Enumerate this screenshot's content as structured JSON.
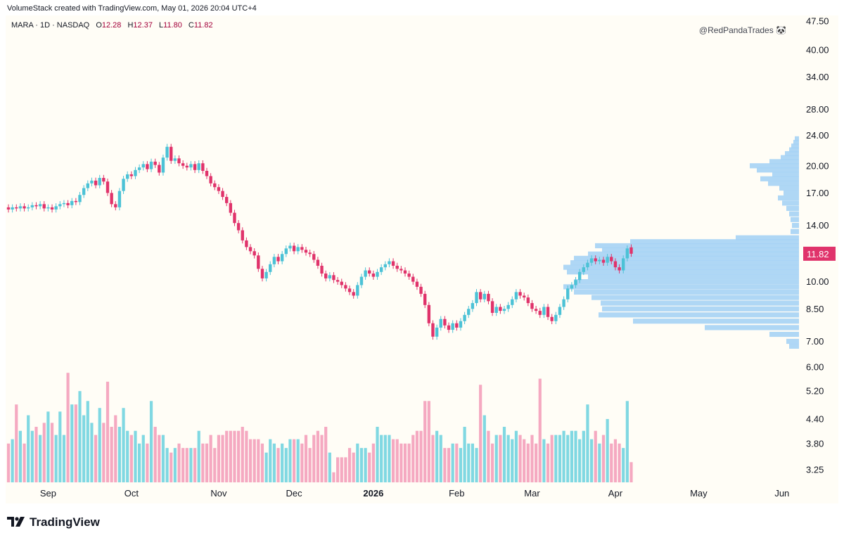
{
  "header": {
    "attribution": "VolumeStack created with TradingView.com, May 01, 2026 20:04 UTC+4"
  },
  "legend": {
    "symbol_line": "MARA · 1D · NASDAQ",
    "open_label": "O",
    "open": "12.28",
    "high_label": "H",
    "high": "12.37",
    "low_label": "L",
    "low": "11.80",
    "close_label": "C",
    "close": "11.82"
  },
  "watermark": "@RedPandaTrades 🐼",
  "footer": {
    "logo_text": "TradingView"
  },
  "colors": {
    "up": "#4cc2d6",
    "down": "#e0336b",
    "vol_up": "#80d8e2",
    "vol_down": "#f5a9c1",
    "profile": "#a6d3f5",
    "background": "#fffdf6"
  },
  "chart_data": {
    "type": "candlestick",
    "symbol": "MARA",
    "interval": "1D",
    "exchange": "NASDAQ",
    "price_scale": "log",
    "price_ticks": [
      47.5,
      40.0,
      34.0,
      28.0,
      24.0,
      20.0,
      17.0,
      14.0,
      11.82,
      10.0,
      8.5,
      7.0,
      6.0,
      5.2,
      4.4,
      3.8,
      3.25
    ],
    "price_tick_labels": [
      "47.50",
      "40.00",
      "34.00",
      "28.00",
      "24.00",
      "20.00",
      "17.00",
      "14.00",
      "10.00",
      "8.50",
      "7.00",
      "6.00",
      "5.20",
      "4.40",
      "3.80",
      "3.25"
    ],
    "last_price": "11.82",
    "time_labels": [
      {
        "label": "Sep",
        "day": 10
      },
      {
        "label": "Oct",
        "day": 31
      },
      {
        "label": "Nov",
        "day": 53
      },
      {
        "label": "Dec",
        "day": 72
      },
      {
        "label": "2026",
        "day": 92,
        "bold": true
      },
      {
        "label": "Feb",
        "day": 113
      },
      {
        "label": "Mar",
        "day": 132
      },
      {
        "label": "Apr",
        "day": 153
      },
      {
        "label": "May",
        "day": 174
      },
      {
        "label": "Jun",
        "day": 195
      }
    ],
    "closes": [
      15.4,
      15.6,
      15.5,
      15.7,
      15.5,
      15.6,
      15.8,
      15.7,
      15.9,
      15.5,
      15.6,
      15.4,
      15.7,
      15.9,
      16.0,
      15.8,
      16.2,
      16.1,
      16.8,
      17.5,
      18.0,
      18.3,
      17.8,
      18.6,
      18.2,
      17.0,
      15.9,
      15.6,
      17.2,
      18.5,
      19.0,
      18.8,
      19.5,
      19.8,
      20.2,
      19.6,
      20.5,
      20.1,
      19.2,
      21.0,
      22.4,
      20.6,
      20.9,
      20.3,
      20.0,
      19.8,
      20.2,
      19.5,
      20.3,
      19.4,
      18.8,
      18.0,
      17.6,
      17.2,
      16.6,
      16.0,
      15.1,
      14.2,
      13.6,
      12.8,
      12.3,
      12.0,
      11.7,
      10.8,
      10.2,
      10.6,
      11.1,
      11.6,
      11.3,
      11.8,
      12.2,
      12.4,
      12.0,
      12.3,
      12.1,
      11.9,
      11.8,
      11.4,
      11.0,
      10.5,
      10.2,
      10.4,
      10.1,
      10.0,
      9.8,
      9.6,
      9.4,
      9.2,
      9.8,
      10.3,
      10.7,
      10.5,
      10.3,
      10.6,
      10.9,
      11.1,
      11.3,
      11.0,
      10.8,
      10.7,
      10.5,
      10.3,
      10.0,
      9.7,
      9.3,
      8.7,
      7.8,
      7.2,
      7.6,
      8.0,
      7.7,
      7.5,
      7.8,
      7.6,
      7.9,
      8.2,
      8.5,
      8.8,
      9.4,
      9.0,
      9.3,
      8.9,
      8.3,
      8.6,
      8.4,
      8.5,
      8.7,
      9.0,
      9.4,
      9.2,
      9.1,
      8.8,
      8.5,
      8.4,
      8.2,
      8.6,
      8.1,
      7.9,
      8.2,
      8.6,
      9.0,
      9.6,
      9.8,
      10.1,
      10.6,
      10.9,
      11.2,
      11.5,
      11.3,
      11.4,
      11.2,
      11.6,
      11.3,
      10.9,
      10.7,
      11.5,
      12.2,
      11.82
    ],
    "opens": [
      15.6,
      15.4,
      15.6,
      15.5,
      15.7,
      15.5,
      15.6,
      15.8,
      15.7,
      15.9,
      15.5,
      15.6,
      15.4,
      15.7,
      15.9,
      16.0,
      15.8,
      16.2,
      16.1,
      16.8,
      17.5,
      18.0,
      18.3,
      17.8,
      18.6,
      18.2,
      17.0,
      15.9,
      15.6,
      17.2,
      18.5,
      19.0,
      18.8,
      19.5,
      19.8,
      20.2,
      19.6,
      20.5,
      20.1,
      19.2,
      21.0,
      22.4,
      20.6,
      20.9,
      20.3,
      20.0,
      19.8,
      20.2,
      19.5,
      20.3,
      19.4,
      18.8,
      18.0,
      17.6,
      17.2,
      16.6,
      16.0,
      15.1,
      14.2,
      13.6,
      12.8,
      12.3,
      12.0,
      11.7,
      10.8,
      10.2,
      10.6,
      11.1,
      11.6,
      11.3,
      11.8,
      12.2,
      12.4,
      12.0,
      12.3,
      12.1,
      11.9,
      11.8,
      11.4,
      11.0,
      10.5,
      10.2,
      10.4,
      10.1,
      10.0,
      9.8,
      9.6,
      9.4,
      9.2,
      9.8,
      10.3,
      10.7,
      10.5,
      10.3,
      10.6,
      10.9,
      11.1,
      11.3,
      11.0,
      10.8,
      10.7,
      10.5,
      10.3,
      10.0,
      9.7,
      9.3,
      8.7,
      7.8,
      7.2,
      7.6,
      8.0,
      7.7,
      7.5,
      7.8,
      7.6,
      7.9,
      8.2,
      8.5,
      8.8,
      9.4,
      9.0,
      9.3,
      8.9,
      8.3,
      8.6,
      8.4,
      8.5,
      8.7,
      9.0,
      9.4,
      9.2,
      9.1,
      8.8,
      8.5,
      8.4,
      8.2,
      8.6,
      8.1,
      7.9,
      8.2,
      8.6,
      9.0,
      9.6,
      9.8,
      10.1,
      10.6,
      10.9,
      11.2,
      11.5,
      11.3,
      11.4,
      11.2,
      11.6,
      11.3,
      10.9,
      10.7,
      11.5,
      12.28
    ],
    "volumes": [
      3.8,
      3.9,
      4.8,
      4.1,
      3.8,
      4.5,
      4.1,
      4.2,
      4.0,
      4.3,
      4.6,
      4.3,
      4.0,
      4.6,
      4.0,
      5.8,
      4.8,
      4.8,
      5.2,
      4.5,
      4.9,
      4.3,
      4.0,
      4.7,
      4.3,
      5.5,
      4.2,
      4.5,
      4.2,
      4.7,
      4.1,
      4.0,
      4.1,
      3.8,
      4.0,
      3.8,
      4.9,
      4.2,
      4.0,
      4.0,
      3.7,
      3.6,
      3.7,
      3.8,
      3.7,
      3.7,
      3.7,
      3.7,
      4.1,
      3.8,
      3.8,
      4.0,
      3.7,
      4.0,
      4.0,
      4.1,
      4.1,
      4.1,
      4.1,
      4.2,
      4.1,
      3.9,
      3.9,
      3.9,
      3.8,
      3.6,
      3.9,
      3.8,
      3.7,
      3.8,
      3.7,
      3.9,
      3.9,
      3.9,
      3.8,
      4.0,
      3.7,
      4.0,
      4.1,
      4.0,
      4.2,
      3.6,
      3.2,
      3.5,
      3.5,
      3.5,
      3.7,
      3.6,
      3.8,
      3.7,
      3.7,
      3.6,
      3.8,
      4.2,
      4.0,
      4.0,
      4.0,
      3.9,
      3.9,
      3.8,
      3.8,
      3.8,
      4.0,
      4.1,
      4.1,
      4.9,
      4.9,
      4.0,
      4.1,
      4.0,
      3.7,
      3.7,
      3.8,
      3.8,
      3.7,
      4.2,
      3.8,
      3.8,
      3.7,
      5.4,
      4.5,
      4.1,
      3.8,
      4.0,
      4.0,
      4.2,
      4.0,
      3.9,
      4.1,
      4.0,
      3.9,
      3.8,
      4.0,
      3.8,
      5.6,
      3.9,
      3.8,
      4.0,
      4.0,
      4.0,
      4.1,
      4.0,
      4.1,
      4.1,
      3.9,
      4.1,
      4.8,
      3.9,
      4.1,
      3.8,
      4.0,
      4.4,
      3.8,
      3.9,
      3.8,
      3.7,
      4.9,
      3.4
    ],
    "volume_profile": [
      {
        "price": 23.5,
        "size": 6
      },
      {
        "price": 23.0,
        "size": 8
      },
      {
        "price": 22.5,
        "size": 11
      },
      {
        "price": 22.0,
        "size": 14
      },
      {
        "price": 21.5,
        "size": 20
      },
      {
        "price": 21.0,
        "size": 26
      },
      {
        "price": 20.5,
        "size": 42
      },
      {
        "price": 20.0,
        "size": 70
      },
      {
        "price": 19.5,
        "size": 60
      },
      {
        "price": 19.0,
        "size": 38
      },
      {
        "price": 18.5,
        "size": 55
      },
      {
        "price": 18.0,
        "size": 44
      },
      {
        "price": 17.5,
        "size": 28
      },
      {
        "price": 17.0,
        "size": 22
      },
      {
        "price": 16.5,
        "size": 30
      },
      {
        "price": 16.0,
        "size": 24
      },
      {
        "price": 15.5,
        "size": 18
      },
      {
        "price": 15.0,
        "size": 14
      },
      {
        "price": 14.5,
        "size": 12
      },
      {
        "price": 14.0,
        "size": 10
      },
      {
        "price": 13.5,
        "size": 12
      },
      {
        "price": 13.0,
        "size": 90
      },
      {
        "price": 12.7,
        "size": 240
      },
      {
        "price": 12.4,
        "size": 290
      },
      {
        "price": 12.1,
        "size": 280
      },
      {
        "price": 11.8,
        "size": 300
      },
      {
        "price": 11.5,
        "size": 320
      },
      {
        "price": 11.2,
        "size": 325
      },
      {
        "price": 10.9,
        "size": 335
      },
      {
        "price": 10.6,
        "size": 330
      },
      {
        "price": 10.3,
        "size": 300
      },
      {
        "price": 10.0,
        "size": 320
      },
      {
        "price": 9.7,
        "size": 335
      },
      {
        "price": 9.4,
        "size": 320
      },
      {
        "price": 9.1,
        "size": 295
      },
      {
        "price": 8.8,
        "size": 282
      },
      {
        "price": 8.5,
        "size": 280
      },
      {
        "price": 8.2,
        "size": 285
      },
      {
        "price": 7.9,
        "size": 236
      },
      {
        "price": 7.6,
        "size": 134
      },
      {
        "price": 7.3,
        "size": 42
      },
      {
        "price": 7.0,
        "size": 18
      },
      {
        "price": 6.8,
        "size": 14
      }
    ]
  }
}
